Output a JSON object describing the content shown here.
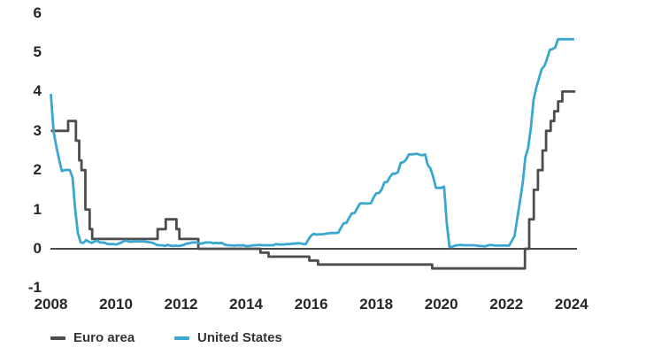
{
  "chart_data": {
    "type": "line",
    "title": "",
    "xlabel": "",
    "ylabel": "",
    "x_axis": {
      "ticks": [
        2008,
        2010,
        2012,
        2014,
        2016,
        2018,
        2020,
        2022,
        2024
      ],
      "range": [
        2008,
        2024.3
      ]
    },
    "y_axis": {
      "ticks": [
        6,
        5,
        4,
        3,
        2,
        1,
        0,
        -1
      ],
      "range": [
        -1,
        6
      ],
      "zero_line": true
    },
    "grid": false,
    "legend_position": "bottom-left",
    "axis_color": "#4a4a4a",
    "series": [
      {
        "name": "Euro area",
        "color": "#4d4d4d",
        "style": "step",
        "x_end": 2024.12,
        "points": [
          [
            2008.0,
            3.0
          ],
          [
            2008.53,
            3.25
          ],
          [
            2008.77,
            2.75
          ],
          [
            2008.87,
            2.25
          ],
          [
            2008.94,
            2.0
          ],
          [
            2009.06,
            1.0
          ],
          [
            2009.19,
            0.5
          ],
          [
            2009.27,
            0.25
          ],
          [
            2011.28,
            0.5
          ],
          [
            2011.53,
            0.75
          ],
          [
            2011.86,
            0.5
          ],
          [
            2011.95,
            0.25
          ],
          [
            2012.53,
            0.0
          ],
          [
            2014.44,
            -0.1
          ],
          [
            2014.69,
            -0.2
          ],
          [
            2015.94,
            -0.3
          ],
          [
            2016.21,
            -0.4
          ],
          [
            2019.72,
            -0.5
          ],
          [
            2022.57,
            0.0
          ],
          [
            2022.7,
            0.75
          ],
          [
            2022.84,
            1.5
          ],
          [
            2022.97,
            2.0
          ],
          [
            2023.11,
            2.5
          ],
          [
            2023.22,
            3.0
          ],
          [
            2023.36,
            3.25
          ],
          [
            2023.47,
            3.5
          ],
          [
            2023.59,
            3.75
          ],
          [
            2023.72,
            4.0
          ]
        ]
      },
      {
        "name": "United States",
        "color": "#3ba6cf",
        "style": "monthly",
        "x_start": 2008.0,
        "x_step": 0.0833333,
        "values": [
          3.94,
          2.98,
          2.61,
          2.28,
          1.98,
          2.0,
          2.01,
          2.0,
          1.81,
          0.97,
          0.39,
          0.16,
          0.15,
          0.22,
          0.18,
          0.15,
          0.18,
          0.21,
          0.16,
          0.16,
          0.15,
          0.12,
          0.12,
          0.12,
          0.11,
          0.13,
          0.16,
          0.2,
          0.2,
          0.18,
          0.18,
          0.19,
          0.19,
          0.19,
          0.19,
          0.18,
          0.17,
          0.16,
          0.14,
          0.1,
          0.09,
          0.09,
          0.07,
          0.1,
          0.08,
          0.07,
          0.08,
          0.07,
          0.08,
          0.1,
          0.13,
          0.14,
          0.16,
          0.16,
          0.16,
          0.13,
          0.14,
          0.16,
          0.16,
          0.16,
          0.14,
          0.15,
          0.14,
          0.15,
          0.11,
          0.09,
          0.09,
          0.08,
          0.08,
          0.09,
          0.08,
          0.09,
          0.07,
          0.07,
          0.08,
          0.09,
          0.09,
          0.1,
          0.09,
          0.09,
          0.09,
          0.09,
          0.09,
          0.12,
          0.11,
          0.11,
          0.11,
          0.12,
          0.12,
          0.13,
          0.13,
          0.14,
          0.14,
          0.12,
          0.12,
          0.24,
          0.34,
          0.38,
          0.36,
          0.37,
          0.37,
          0.38,
          0.39,
          0.4,
          0.4,
          0.4,
          0.41,
          0.54,
          0.65,
          0.66,
          0.79,
          0.9,
          0.91,
          1.04,
          1.15,
          1.16,
          1.15,
          1.15,
          1.16,
          1.3,
          1.41,
          1.42,
          1.51,
          1.69,
          1.7,
          1.82,
          1.91,
          1.91,
          1.95,
          2.19,
          2.2,
          2.27,
          2.4,
          2.4,
          2.41,
          2.42,
          2.39,
          2.38,
          2.4,
          2.13,
          2.04,
          1.83,
          1.55,
          1.55,
          1.55,
          1.58,
          0.65,
          0.05,
          0.05,
          0.08,
          0.09,
          0.1,
          0.09,
          0.09,
          0.09,
          0.09,
          0.09,
          0.08,
          0.07,
          0.07,
          0.06,
          0.08,
          0.1,
          0.09,
          0.08,
          0.08,
          0.08,
          0.08,
          0.08,
          0.08,
          0.2,
          0.33,
          0.77,
          1.21,
          1.68,
          2.33,
          2.56,
          3.08,
          3.78,
          4.1,
          4.33,
          4.57,
          4.65,
          4.83,
          5.06,
          5.08,
          5.12,
          5.33,
          5.33,
          5.33,
          5.33,
          5.33,
          5.33,
          5.33
        ]
      }
    ]
  },
  "legend": {
    "euro_area_label": "Euro area",
    "united_states_label": "United States"
  }
}
